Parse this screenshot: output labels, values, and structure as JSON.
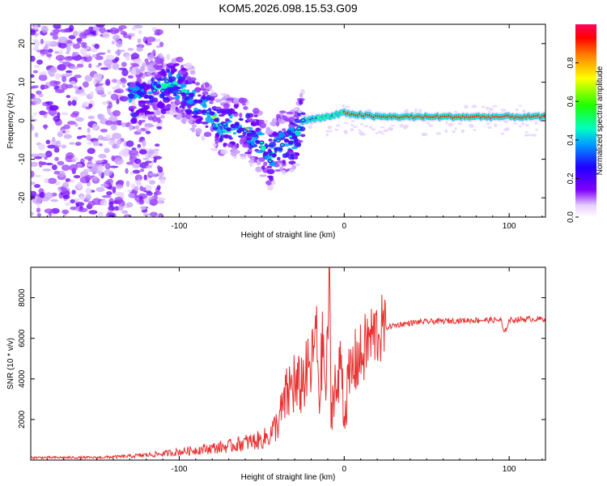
{
  "chart_data": [
    {
      "type": "heatmap",
      "title": "KOM5.2026.098.15.53.G09",
      "xlabel": "Height of straight line (km)",
      "ylabel": "Frequency (Hz)",
      "xlim": [
        -190,
        122
      ],
      "ylim": [
        -25,
        25
      ],
      "xticks": [
        -100,
        0,
        100
      ],
      "yticks": [
        -20,
        -10,
        0,
        10,
        20
      ],
      "colorbar": {
        "label": "Normalized spectral amplitude",
        "range": [
          0,
          1
        ],
        "ticks": [
          "0.0",
          "0.2",
          "0.4",
          "0.6",
          "0.8"
        ],
        "tick_values": [
          0.0,
          0.2,
          0.4,
          0.6,
          0.8
        ]
      },
      "ridge": [
        {
          "x": -120,
          "y": 6
        },
        {
          "x": -105,
          "y": 10
        },
        {
          "x": -90,
          "y": 5
        },
        {
          "x": -75,
          "y": -1
        },
        {
          "x": -60,
          "y": -2
        },
        {
          "x": -50,
          "y": -6
        },
        {
          "x": -45,
          "y": -10
        },
        {
          "x": -40,
          "y": -6
        },
        {
          "x": -30,
          "y": -5
        },
        {
          "x": -25,
          "y": 0
        },
        {
          "x": -10,
          "y": 1
        },
        {
          "x": 0,
          "y": 2
        },
        {
          "x": 20,
          "y": 1
        },
        {
          "x": 50,
          "y": 1
        },
        {
          "x": 100,
          "y": 1
        },
        {
          "x": 122,
          "y": 1
        }
      ]
    },
    {
      "type": "line",
      "xlabel": "Height of straight line (km)",
      "ylabel": "SNR (10 * v/v)",
      "xlim": [
        -190,
        122
      ],
      "ylim": [
        0,
        9500
      ],
      "xticks": [
        -100,
        0,
        100
      ],
      "yticks": [
        2000,
        4000,
        6000,
        8000
      ],
      "series": [
        {
          "name": "SNR",
          "color": "#e83030",
          "x": [
            -190,
            -150,
            -130,
            -110,
            -90,
            -70,
            -60,
            -50,
            -45,
            -40,
            -35,
            -30,
            -25,
            -20,
            -17,
            -15,
            -13,
            -11,
            -9,
            -8,
            -6,
            -4,
            -2,
            0,
            2,
            5,
            8,
            10,
            14,
            18,
            22,
            28,
            35,
            45,
            60,
            80,
            95,
            97,
            100,
            110,
            122
          ],
          "values": [
            100,
            100,
            150,
            250,
            400,
            550,
            700,
            800,
            1000,
            1500,
            2500,
            3200,
            4000,
            4500,
            6500,
            3000,
            6000,
            3000,
            9500,
            2000,
            4000,
            3000,
            5500,
            2000,
            3500,
            4500,
            5000,
            5000,
            5800,
            6200,
            6400,
            6600,
            6700,
            6800,
            6850,
            6900,
            6900,
            6200,
            6900,
            6950,
            6950
          ]
        }
      ]
    }
  ]
}
